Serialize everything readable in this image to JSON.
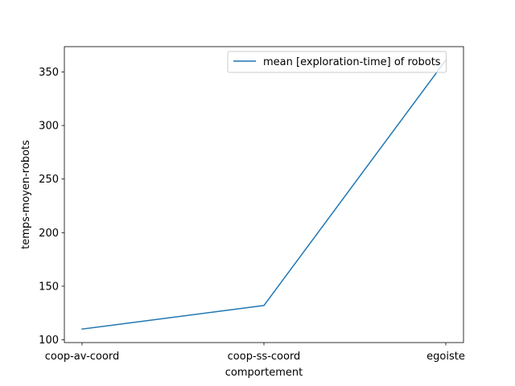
{
  "chart_data": {
    "type": "line",
    "categories": [
      "coop-av-coord",
      "coop-ss-coord",
      "egoiste"
    ],
    "series": [
      {
        "name": "mean [exploration-time] of robots",
        "values": [
          110,
          132,
          361
        ],
        "color": "#1f77b4"
      }
    ],
    "xlabel": "comportement",
    "ylabel": "temps-moyen-robots",
    "ylim": [
      97.4,
      373.6
    ],
    "yticks": [
      100,
      150,
      200,
      250,
      300,
      350
    ],
    "ytick_labels": [
      "100",
      "150",
      "200",
      "250",
      "300",
      "350"
    ],
    "grid": false,
    "legend_position": "top-right"
  }
}
